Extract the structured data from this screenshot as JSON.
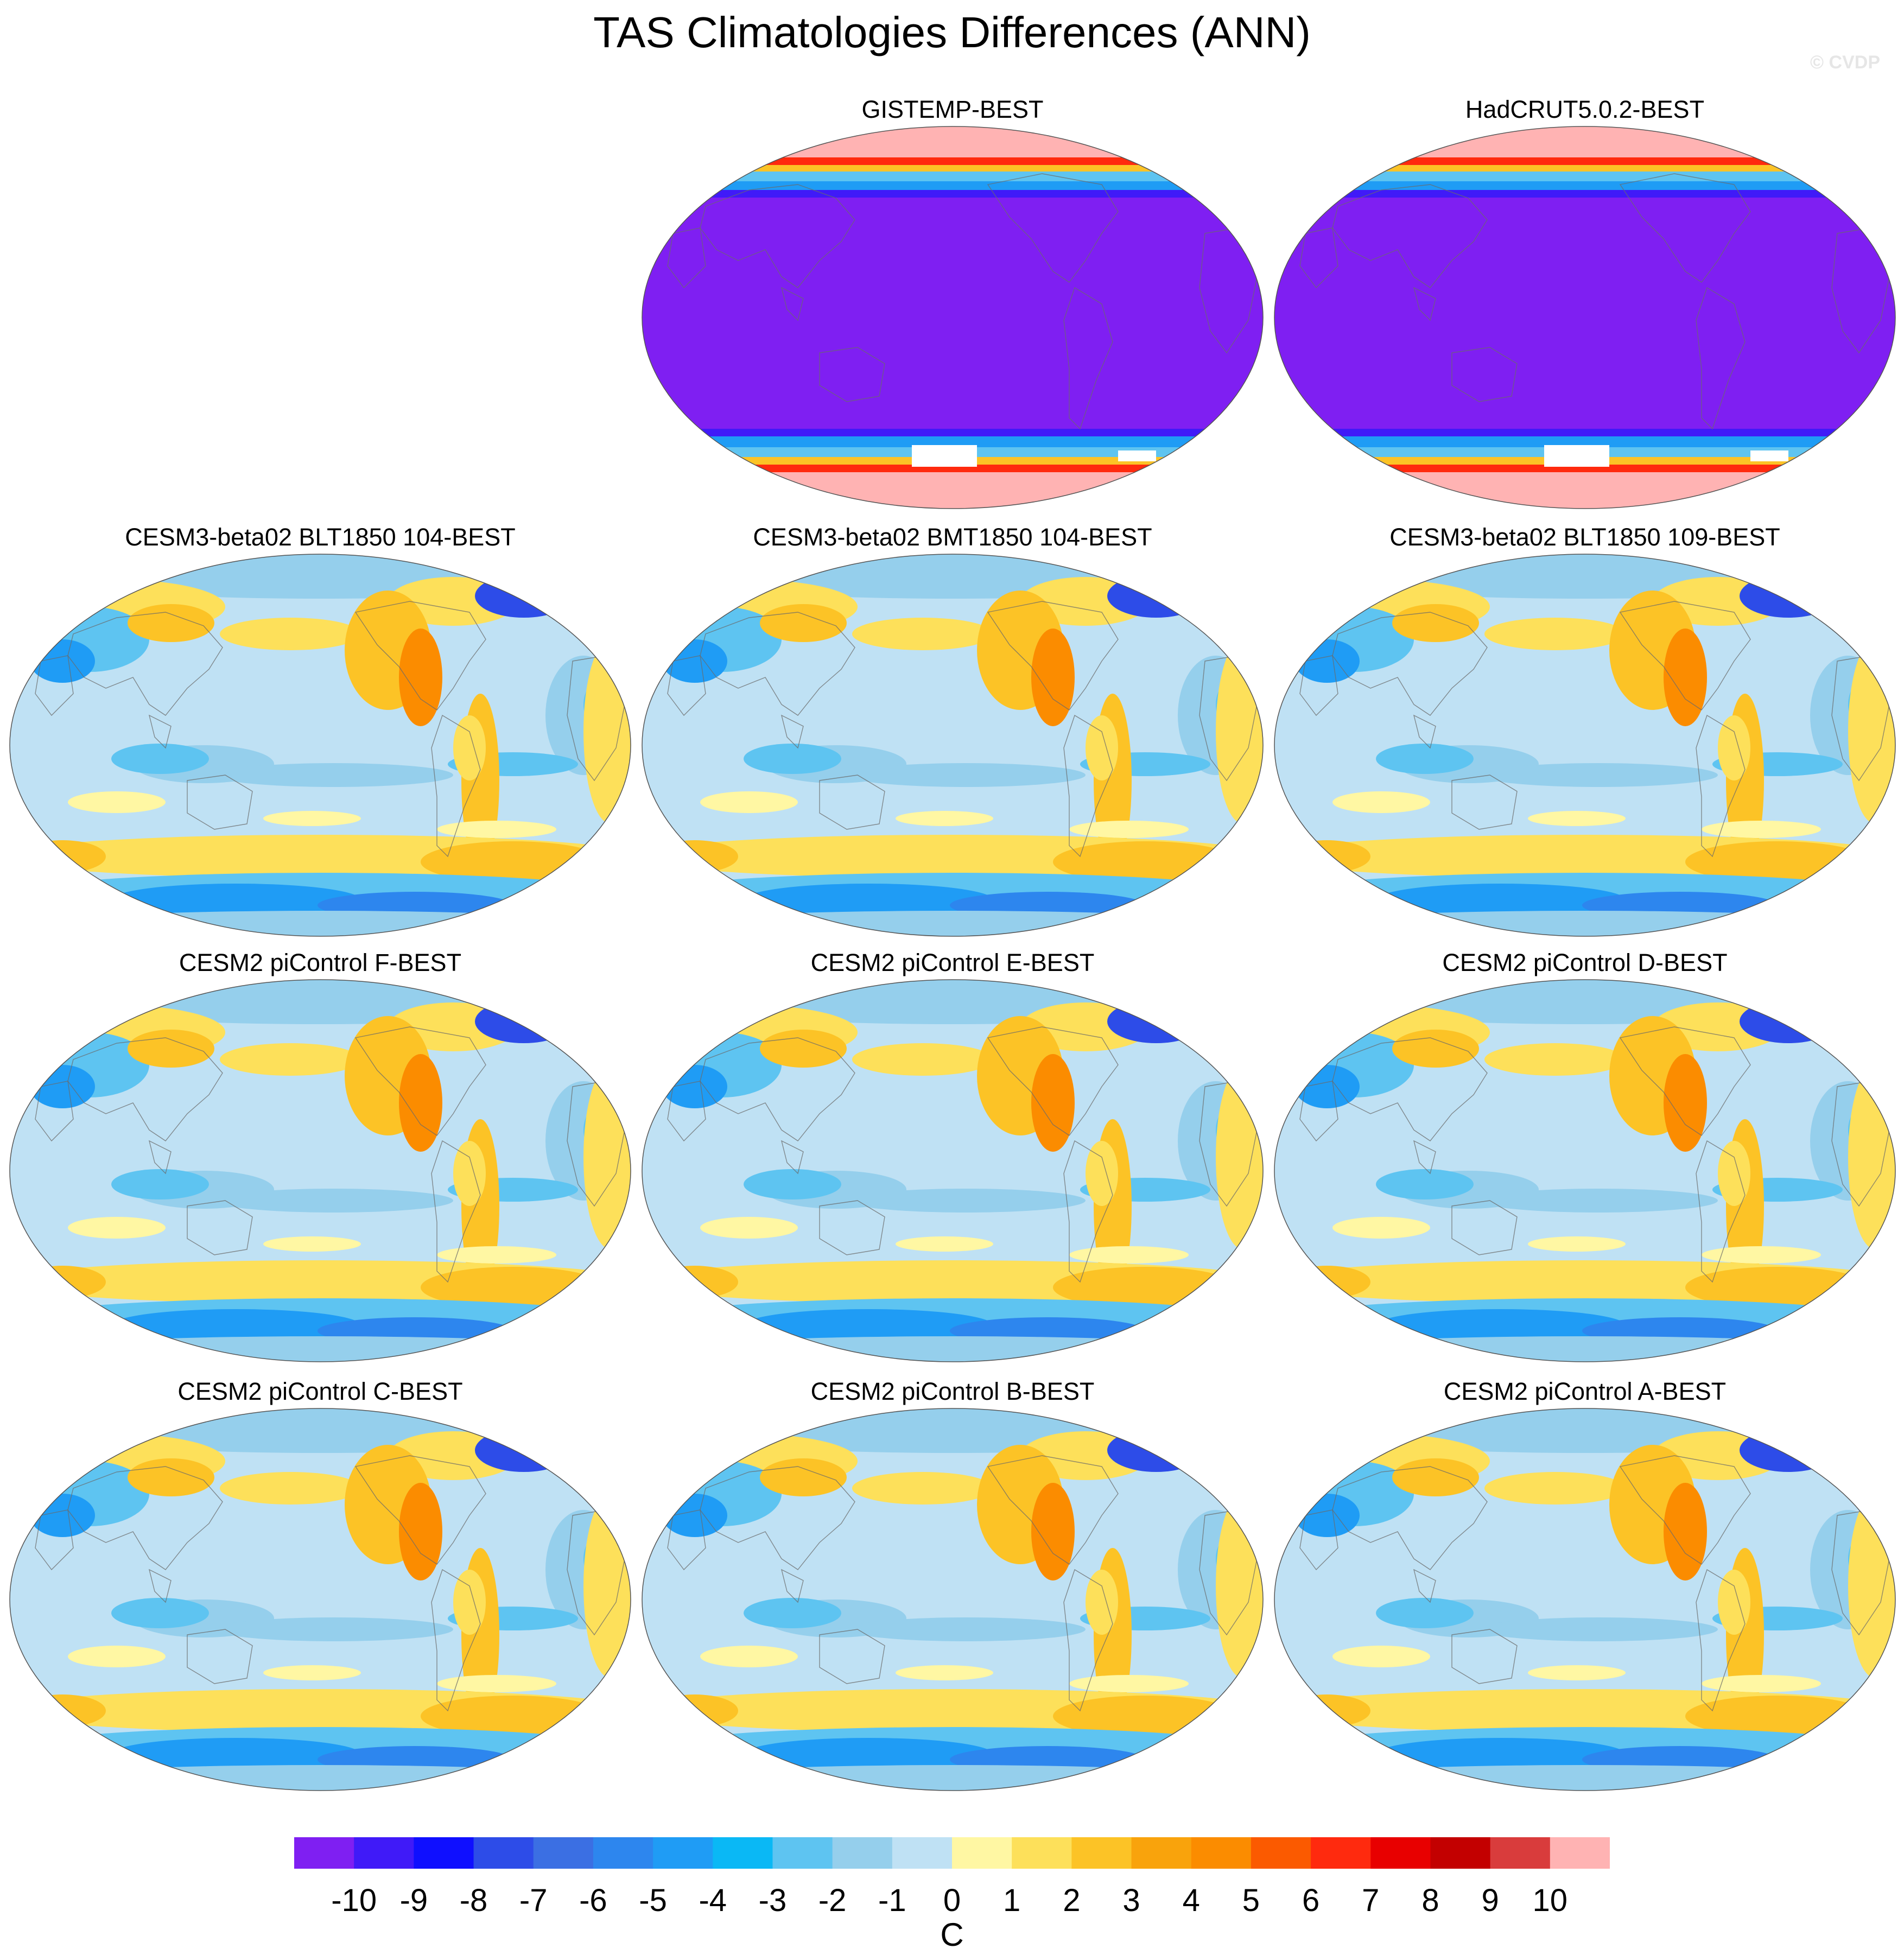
{
  "title": "TAS Climatologies Differences (ANN)",
  "watermark": "© CVDP",
  "units": "C",
  "colorbar": {
    "ticks": [
      "-10",
      "-9",
      "-8",
      "-7",
      "-6",
      "-5",
      "-4",
      "-3",
      "-2",
      "-1",
      "0",
      "1",
      "2",
      "3",
      "4",
      "5",
      "6",
      "7",
      "8",
      "9",
      "10"
    ],
    "colors": [
      "#7f1ff2",
      "#401af8",
      "#0f0fff",
      "#2d4ce8",
      "#3b6fe3",
      "#2d86ee",
      "#1f9cf5",
      "#0ab8f5",
      "#5ec4f1",
      "#95cfec",
      "#bfe1f4",
      "#fff7a3",
      "#fde05a",
      "#fcc326",
      "#f9a30c",
      "#fb8c00",
      "#fb5a00",
      "#ff2a0e",
      "#e80000",
      "#c30000",
      "#d93c3c",
      "#ffb3b3"
    ]
  },
  "panels": [
    {
      "title": "GISTEMP-BEST",
      "style": "obs"
    },
    {
      "title": "HadCRUT5.0.2-BEST",
      "style": "obs"
    },
    {
      "title": "CESM3-beta02 BLT1850 104-BEST",
      "style": "model"
    },
    {
      "title": "CESM3-beta02 BMT1850 104-BEST",
      "style": "model"
    },
    {
      "title": "CESM3-beta02 BLT1850 109-BEST",
      "style": "model"
    },
    {
      "title": "CESM2 piControl F-BEST",
      "style": "model"
    },
    {
      "title": "CESM2 piControl E-BEST",
      "style": "model"
    },
    {
      "title": "CESM2 piControl D-BEST",
      "style": "model"
    },
    {
      "title": "CESM2 piControl C-BEST",
      "style": "model"
    },
    {
      "title": "CESM2 piControl B-BEST",
      "style": "model"
    },
    {
      "title": "CESM2 piControl A-BEST",
      "style": "model"
    }
  ]
}
